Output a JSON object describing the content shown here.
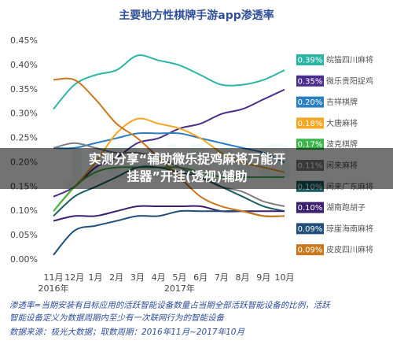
{
  "chart_data": {
    "type": "line",
    "title": "主要地方性棋牌手游app渗透率",
    "categories": [
      "11月",
      "12月",
      "1月",
      "2月",
      "3月",
      "4月",
      "5月",
      "6月",
      "7月",
      "8月",
      "9月",
      "10月"
    ],
    "years": [
      "2016年",
      "2017年"
    ],
    "ylim": [
      0,
      0.45
    ],
    "yticks": [
      {
        "value": 0,
        "label": "0.00%"
      },
      {
        "value": 0.05,
        "label": "0.05%"
      },
      {
        "value": 0.1,
        "label": "0.10%"
      },
      {
        "value": 0.15,
        "label": "0.15%"
      },
      {
        "value": 0.2,
        "label": "0.20%"
      },
      {
        "value": 0.25,
        "label": "0.25%"
      },
      {
        "value": 0.3,
        "label": "0.30%"
      },
      {
        "value": 0.35,
        "label": "0.35%"
      },
      {
        "value": 0.4,
        "label": "0.40%"
      },
      {
        "value": 0.45,
        "label": "0.45%"
      }
    ],
    "series": [
      {
        "name": "皖猫四川麻将",
        "color": "#2ab5a5",
        "values": [
          0.31,
          0.36,
          0.38,
          0.39,
          0.42,
          0.41,
          0.4,
          0.38,
          0.36,
          0.36,
          0.37,
          0.39
        ],
        "value_labels": [
          "0.39%"
        ]
      },
      {
        "name": "微乐贵阳捉鸡",
        "color": "#4b2d8c",
        "values": [
          0.13,
          0.15,
          0.19,
          0.21,
          0.24,
          0.25,
          0.27,
          0.28,
          0.3,
          0.31,
          0.33,
          0.35
        ],
        "value_labels": [
          "0.35%"
        ]
      },
      {
        "name": "吉祥棋牌",
        "color": "#2a7fc1",
        "values": [
          0.23,
          0.23,
          0.24,
          0.25,
          0.26,
          0.26,
          0.26,
          0.25,
          0.24,
          0.23,
          0.22,
          0.2
        ],
        "value_labels": [
          "0.20%"
        ]
      },
      {
        "name": "大唐麻将",
        "color": "#f5a623",
        "values": [
          0.1,
          0.15,
          0.2,
          0.26,
          0.29,
          0.28,
          0.27,
          0.25,
          0.22,
          0.2,
          0.19,
          0.18
        ],
        "value_labels": [
          "0.18%"
        ]
      },
      {
        "name": "波克棋牌",
        "color": "#3bb54a",
        "values": [
          0.1,
          0.15,
          0.18,
          0.19,
          0.19,
          0.19,
          0.19,
          0.18,
          0.17,
          0.17,
          0.17,
          0.17
        ],
        "value_labels": [
          "0.17%"
        ]
      },
      {
        "name": "闲来麻将",
        "color": "#7f7f7f",
        "values": [
          0.23,
          0.24,
          0.23,
          0.22,
          0.22,
          0.21,
          0.19,
          0.17,
          0.15,
          0.14,
          0.12,
          0.11
        ],
        "value_labels": [
          "0.11%"
        ]
      },
      {
        "name": "闲来广东麻将",
        "color": "#1a5e63",
        "values": [
          0.09,
          0.13,
          0.15,
          0.17,
          0.19,
          0.19,
          0.18,
          0.17,
          0.15,
          0.13,
          0.11,
          0.1
        ],
        "value_labels": [
          "0.10%"
        ]
      },
      {
        "name": "湖南跑胡子",
        "color": "#3c1f6e",
        "values": [
          0.08,
          0.09,
          0.09,
          0.1,
          0.11,
          0.11,
          0.11,
          0.11,
          0.1,
          0.1,
          0.1,
          0.1
        ],
        "value_labels": [
          "0.10%"
        ]
      },
      {
        "name": "琼崖海南麻将",
        "color": "#1f4e79",
        "values": [
          0.01,
          0.06,
          0.07,
          0.08,
          0.09,
          0.09,
          0.1,
          0.1,
          0.1,
          0.1,
          0.09,
          0.09
        ],
        "value_labels": [
          "0.09%"
        ]
      },
      {
        "name": "皮皮四川麻将",
        "color": "#c8781a",
        "values": [
          0.37,
          0.37,
          0.33,
          0.28,
          0.25,
          0.21,
          0.17,
          0.13,
          0.11,
          0.1,
          0.09,
          0.09
        ],
        "value_labels": [
          "0.09%"
        ]
      }
    ],
    "notes": [
      "渗透率=当期安装有目标应用的活跃智能设备数量占当期全部活跃智能设备的比例，活跃",
      "智能设备定义为数据周期内至少有一次联网行为的智能设备"
    ],
    "source": "数据来源：极光大数据；取数周期：2016年11月~2017年10月",
    "watermark": "JIGUANG",
    "overlay": [
      "实测分享“辅助微乐捉鸡麻将万能开",
      "挂器”开挂(透视)辅助"
    ]
  }
}
